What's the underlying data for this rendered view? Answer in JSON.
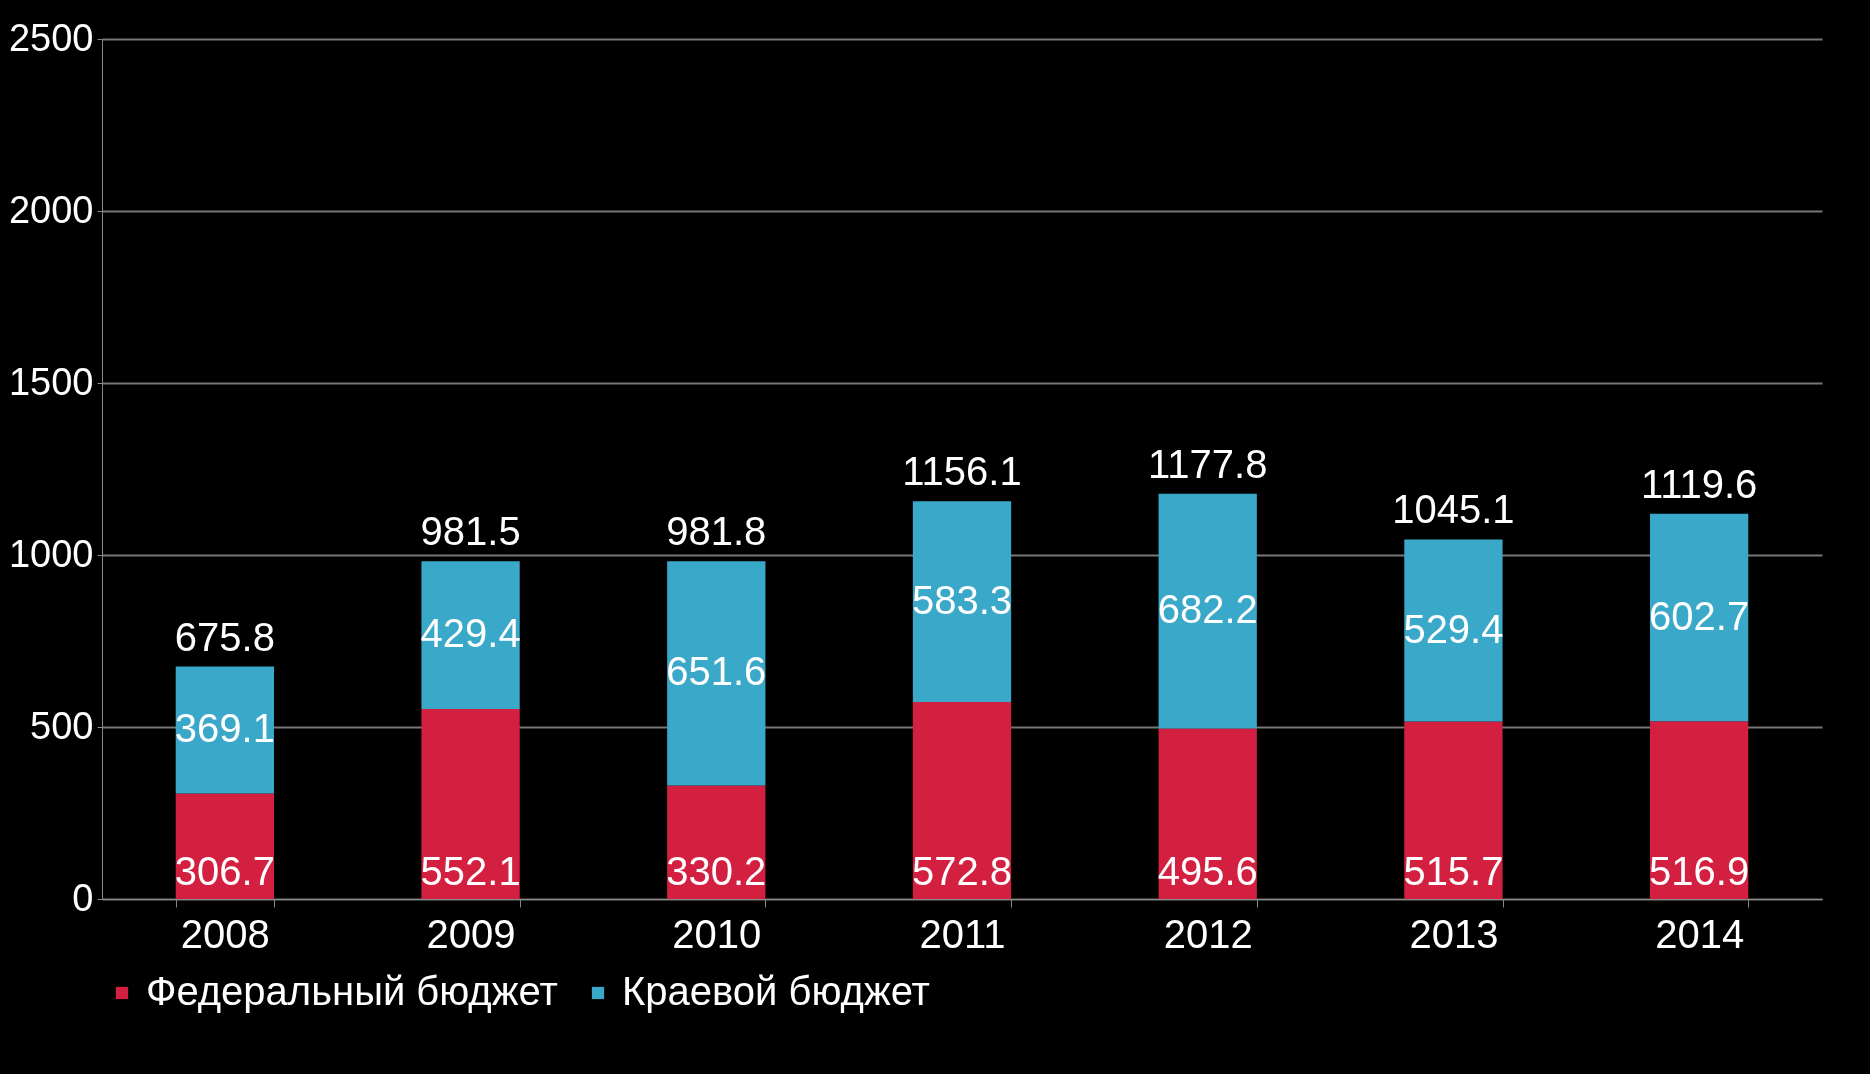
{
  "chart_data": {
    "type": "bar",
    "stacked": true,
    "categories": [
      "2008",
      "2009",
      "2010",
      "2011",
      "2012",
      "2013",
      "2014"
    ],
    "series": [
      {
        "name": "Федеральный бюджет",
        "color": "#d42040",
        "values": [
          306.7,
          552.1,
          330.2,
          572.8,
          495.6,
          515.7,
          516.9
        ]
      },
      {
        "name": "Краевой бюджет",
        "color": "#3aa8c8",
        "values": [
          369.1,
          429.4,
          651.6,
          583.3,
          682.2,
          529.4,
          602.7
        ]
      }
    ],
    "totals": [
      "675.8",
      "981.5",
      "981.8",
      "1156.1",
      "1177.8",
      "1045.1",
      "1119.6"
    ],
    "data_labels": true,
    "ylim": [
      0,
      2500
    ],
    "yticks": [
      0,
      500,
      1000,
      1500,
      2000,
      2500
    ],
    "grid": "y",
    "legend": "bottom"
  }
}
